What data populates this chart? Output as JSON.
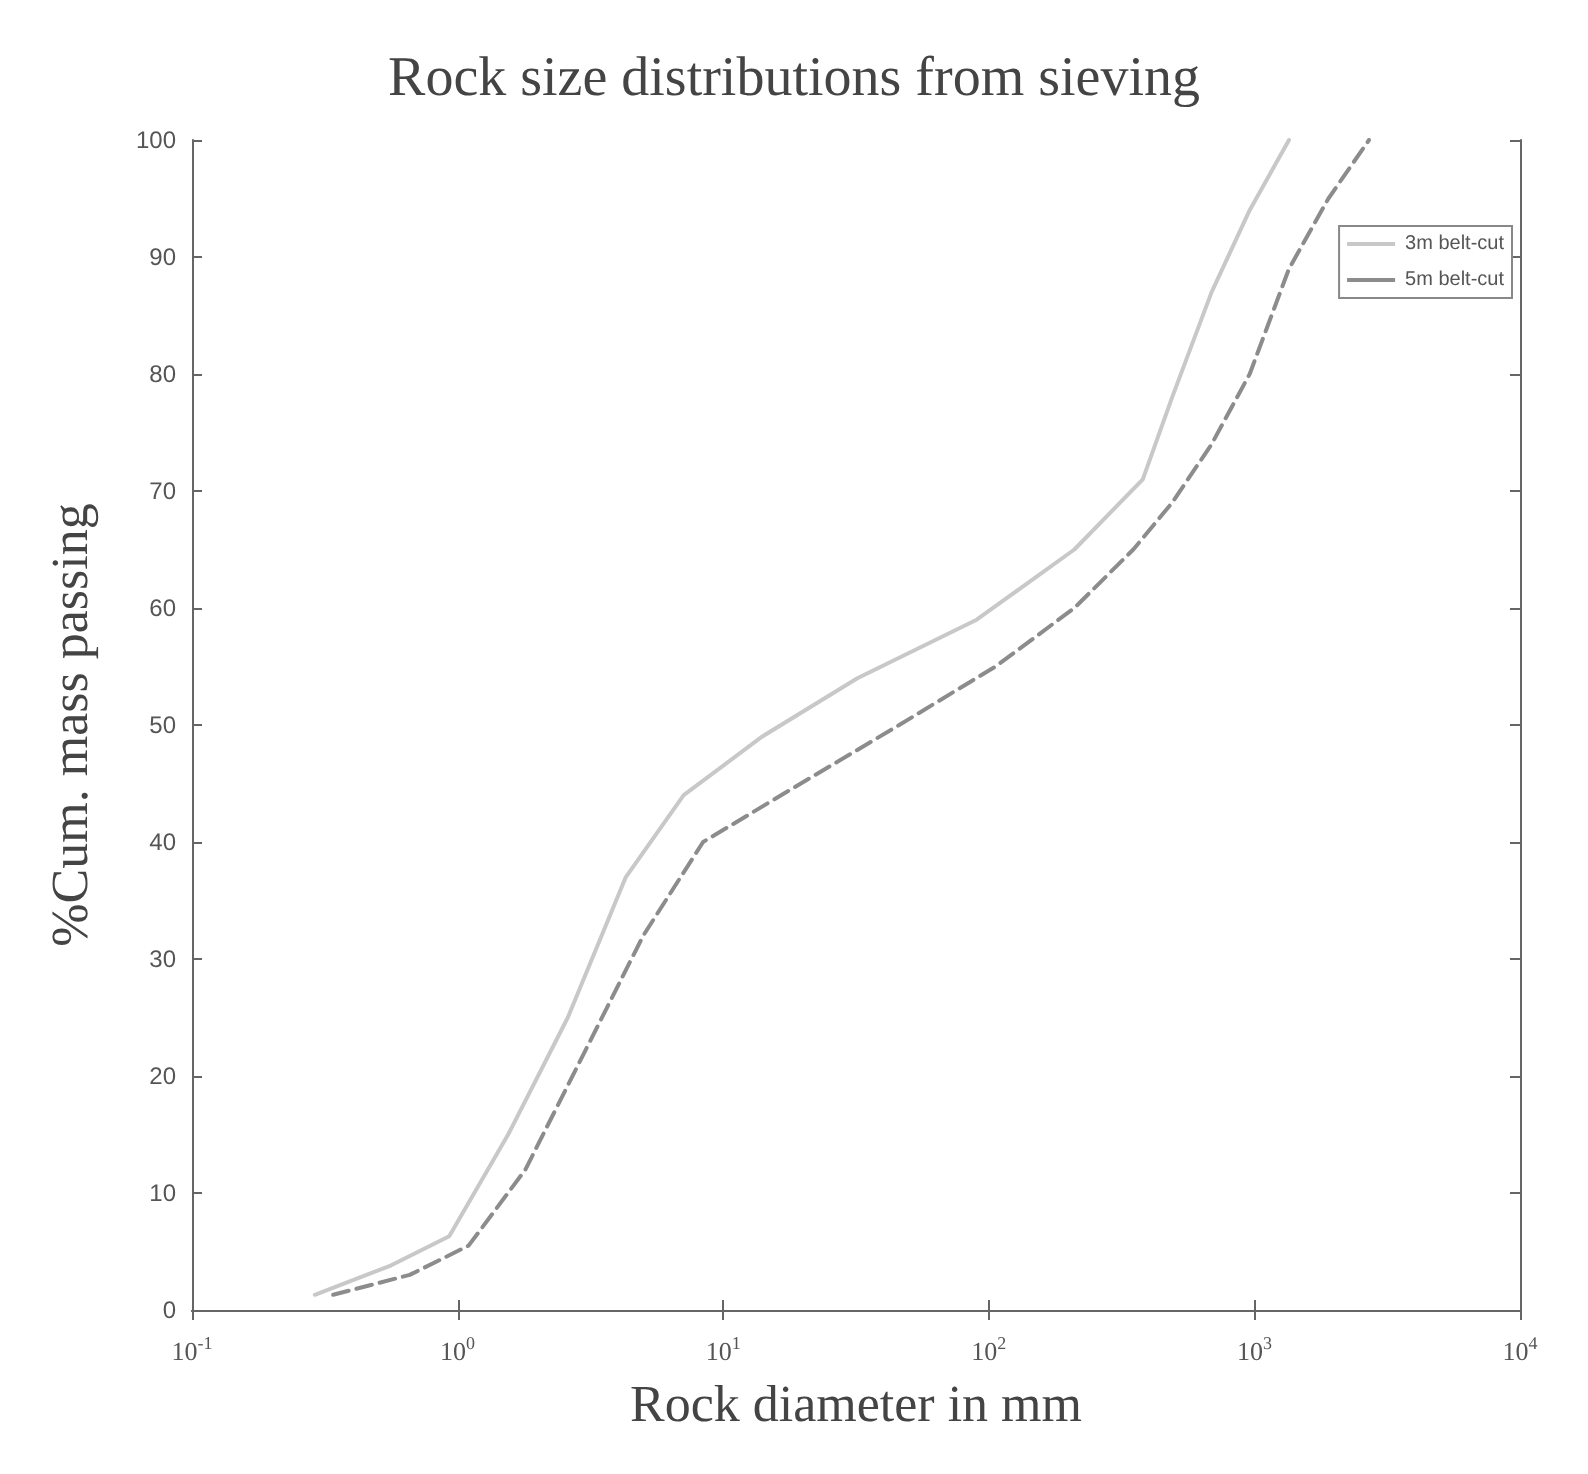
{
  "chart_data": {
    "type": "line",
    "title": "Rock size distributions from sieving",
    "xlabel": "Rock diameter in mm",
    "ylabel": "%Cum. mass passing",
    "log": "x",
    "xlim": [
      0.1,
      10000
    ],
    "xticks": [
      {
        "value": 0.1,
        "label": "10$^{-1}$"
      },
      {
        "value": 1,
        "label": "10$^{0}$"
      },
      {
        "value": 10,
        "label": "10$^{1}$"
      },
      {
        "value": 100,
        "label": "10$^{2}$"
      },
      {
        "value": 1000,
        "label": "10$^{3}$"
      },
      {
        "value": 10000,
        "label": "10$^{4}$"
      }
    ],
    "ylim": [
      0,
      100
    ],
    "yticks": [
      0,
      10,
      20,
      30,
      40,
      50,
      60,
      70,
      80,
      90,
      100
    ],
    "grid": false,
    "legend": "top right",
    "series": [
      {
        "name": "3m belt-cut",
        "color": "#c8c8c8",
        "line_style": "solid",
        "x": [
          0.29,
          0.56,
          0.93,
          1.55,
          2.6,
          4.3,
          7.1,
          14,
          32,
          90,
          210,
          380,
          490,
          690,
          960,
          1350
        ],
        "values": [
          1.3,
          3.8,
          6.3,
          15,
          25,
          37,
          44,
          49,
          54,
          59,
          65,
          71,
          78,
          87,
          94,
          100
        ]
      },
      {
        "name": "5m belt-cut",
        "color": "#8c8c8c",
        "line_style": "dashed",
        "x": [
          0.34,
          0.66,
          1.1,
          1.8,
          3,
          5,
          8.4,
          19.6,
          46,
          106,
          210,
          350,
          490,
          690,
          960,
          1350,
          1900,
          2700
        ],
        "values": [
          1.3,
          3,
          5.5,
          12,
          22,
          32,
          40,
          45,
          50,
          55,
          60,
          65,
          69,
          74,
          80,
          89,
          95,
          100
        ]
      }
    ]
  }
}
